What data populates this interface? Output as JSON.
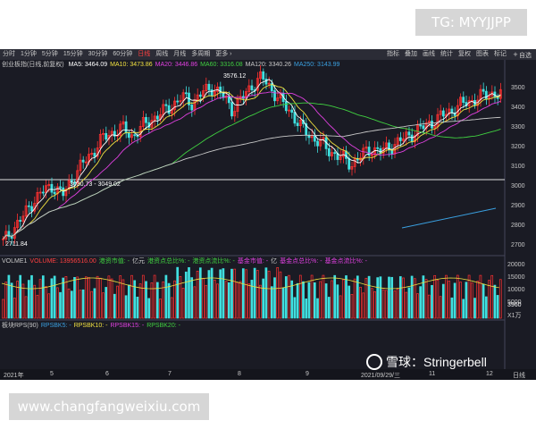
{
  "badge": "TG: MYYJJPP",
  "site_url": "www.changfangweixiu.com",
  "toolbar": {
    "timeframes": [
      "分时",
      "1分钟",
      "5分钟",
      "15分钟",
      "30分钟",
      "60分钟",
      "日线",
      "周线",
      "月线",
      "多周期",
      "更多 ›"
    ],
    "active_index": 6,
    "tools": [
      "指标",
      "叠加",
      "画线",
      "统计",
      "复权",
      "图表",
      "标记"
    ],
    "add_label": "自选"
  },
  "ma_legend": {
    "instrument": "创业板指(日线,前复权)",
    "items": [
      {
        "label": "MA5: 3464.09",
        "color": "#ffffff"
      },
      {
        "label": "MA10: 3473.86",
        "color": "#f0e040"
      },
      {
        "label": "MA20: 3446.86",
        "color": "#e040e0"
      },
      {
        "label": "MA60: 3316.08",
        "color": "#40d040"
      },
      {
        "label": "MA120: 3340.26",
        "color": "#c8c8c8"
      },
      {
        "label": "MA250: 3143.99",
        "color": "#3aa0e0"
      }
    ]
  },
  "vol_legend": {
    "items": [
      {
        "label": "VOLME1",
        "color": "#c8c8c8"
      },
      {
        "label": "VOLUME: 13956516.00",
        "color": "#ff4040"
      },
      {
        "label": "港资市值: -",
        "color": "#40d040"
      },
      {
        "label": "亿元",
        "color": "#c8c8c8"
      },
      {
        "label": "港资点总比%: -",
        "color": "#40d040"
      },
      {
        "label": "港资点流比%: -",
        "color": "#40d040"
      },
      {
        "label": "基金市值: -",
        "color": "#e040e0"
      },
      {
        "label": "亿",
        "color": "#c8c8c8"
      },
      {
        "label": "基金点总比%: -",
        "color": "#e040e0"
      },
      {
        "label": "基金点流比%: -",
        "color": "#e040e0"
      }
    ]
  },
  "rps_legend": {
    "items": [
      {
        "label": "板块RPS(90)",
        "color": "#c8c8c8"
      },
      {
        "label": "RPSBK5: -",
        "color": "#3aa0e0"
      },
      {
        "label": "RPSBK10: -",
        "color": "#f0e040"
      },
      {
        "label": "RPSBK15: -",
        "color": "#e040e0"
      },
      {
        "label": "RPSBK20: -",
        "color": "#40d040"
      }
    ]
  },
  "price_axis": [
    "3500",
    "3400",
    "3300",
    "3200",
    "3100",
    "3000",
    "2900",
    "2800",
    "2700"
  ],
  "volume_axis": [
    "20000",
    "15000",
    "10000",
    "5000"
  ],
  "volume_unit": "X1万",
  "volume_current": "3960",
  "x_axis": [
    "2021年",
    "5",
    "6",
    "7",
    "8",
    "9",
    "2021/09/29/三",
    "11",
    "12",
    "日线"
  ],
  "annotations": {
    "high": "3576.12",
    "low": "2711.84",
    "range": "3030.73 - 3049.02"
  },
  "watermark": "雪球：Stringerbell",
  "colors": {
    "up": "#ff3030",
    "down": "#40e0e0",
    "background": "#1a1b24"
  },
  "chart_data": {
    "type": "candlestick",
    "price_range": [
      2680,
      3590
    ],
    "volume_range": [
      0,
      22000
    ],
    "close_path": [
      2720,
      2790,
      2850,
      2930,
      2980,
      3010,
      2960,
      3050,
      3120,
      3180,
      3250,
      3280,
      3300,
      3260,
      3310,
      3350,
      3380,
      3420,
      3460,
      3430,
      3480,
      3510,
      3470,
      3400,
      3450,
      3520,
      3560,
      3500,
      3430,
      3380,
      3300,
      3260,
      3220,
      3180,
      3150,
      3120,
      3160,
      3200,
      3180,
      3210,
      3240,
      3270,
      3300,
      3330,
      3360,
      3390,
      3420,
      3440,
      3460,
      3480,
      3470
    ]
  }
}
